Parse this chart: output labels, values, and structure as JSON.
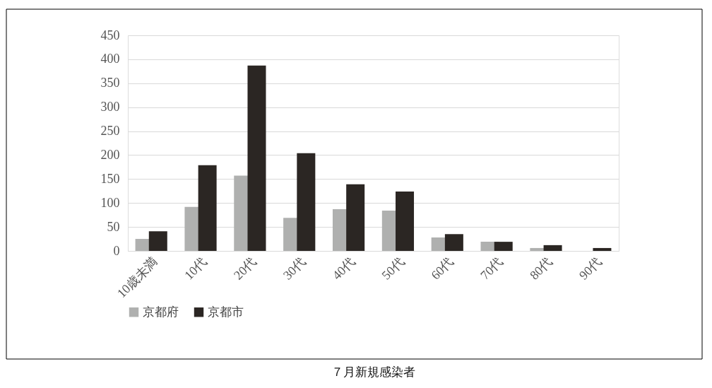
{
  "chart_data": {
    "type": "bar",
    "title": "７月新規感染者",
    "categories": [
      "10歳未満",
      "10代",
      "20代",
      "30代",
      "40代",
      "50代",
      "60代",
      "70代",
      "80代",
      "90代"
    ],
    "series": [
      {
        "name": "京都府",
        "color": "#afb0af",
        "values": [
          25,
          92,
          157,
          69,
          87,
          84,
          28,
          19,
          6,
          0
        ]
      },
      {
        "name": "京都市",
        "color": "#2b2623",
        "values": [
          41,
          179,
          387,
          204,
          139,
          124,
          35,
          19,
          12,
          6
        ]
      }
    ],
    "ylim": [
      0,
      450
    ],
    "yticks": [
      0,
      50,
      100,
      150,
      200,
      250,
      300,
      350,
      400,
      450
    ],
    "grid": "y",
    "legend": "bottom"
  }
}
